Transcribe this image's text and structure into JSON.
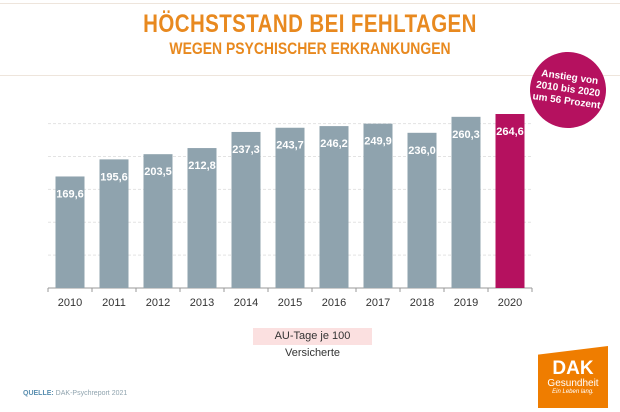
{
  "chart_data": {
    "type": "bar",
    "title": "HÖCHSTSTAND BEI FEHLTAGEN",
    "subtitle": "WEGEN PSYCHISCHER ERKRANKUNGEN",
    "categories": [
      "2010",
      "2011",
      "2012",
      "2013",
      "2014",
      "2015",
      "2016",
      "2017",
      "2018",
      "2019",
      "2020"
    ],
    "values": [
      169.6,
      195.6,
      203.5,
      212.8,
      237.3,
      243.7,
      246.2,
      249.9,
      236.0,
      260.3,
      264.6
    ],
    "data_labels": [
      "169,6",
      "195,6",
      "203,5",
      "212,8",
      "237,3",
      "243,7",
      "246,2",
      "249,9",
      "236,0",
      "260,3",
      "264,6"
    ],
    "xlabel": "AU-Tage je 100 Versicherte",
    "ylabel": "",
    "ylim": [
      0,
      264.6
    ],
    "grid": true,
    "colors": {
      "bar": "#8fa3ae",
      "highlight": "#b5115f",
      "title": "#e8891f"
    },
    "highlight_category": "2020"
  },
  "badge": {
    "lines": [
      "Anstieg von",
      "2010 bis 2020",
      "um 56 Prozent"
    ]
  },
  "source": {
    "label": "QUELLE:",
    "text": " DAK-Psychreport 2021"
  },
  "logo": {
    "line1": "DAK",
    "line2": "Gesundheit",
    "line3": "Ein Leben lang."
  }
}
